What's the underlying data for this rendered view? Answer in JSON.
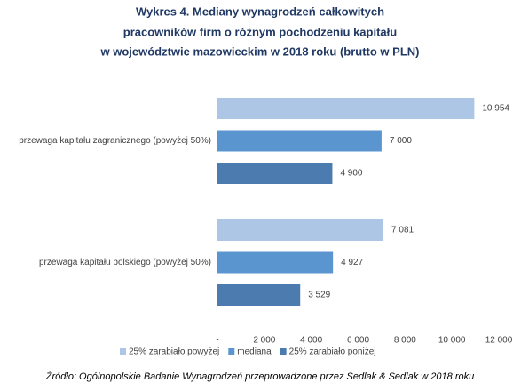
{
  "chart_data": {
    "type": "barh",
    "title_lines": [
      "Wykres 4. Mediany wynagrodzeń całkowitych",
      "pracowników firm o różnym pochodzeniu kapitału",
      "w województwie mazowieckim w 2018 roku (brutto w PLN)"
    ],
    "categories": [
      "przewaga kapitału zagranicznego (powyżej 50%)",
      "przewaga kapitału polskiego (powyżej 50%)"
    ],
    "series": [
      {
        "name": "25% zarabiało powyżej",
        "color": "#adc6e5",
        "values": [
          10954,
          7081
        ],
        "value_labels": [
          "10 954",
          "7 081"
        ]
      },
      {
        "name": "mediana",
        "color": "#5b95d0",
        "values": [
          7000,
          4927
        ],
        "value_labels": [
          "7 000",
          "4 927"
        ]
      },
      {
        "name": "25% zarabiało poniżej",
        "color": "#4c7bb0",
        "values": [
          4900,
          3529
        ],
        "value_labels": [
          "4 900",
          "3 529"
        ]
      }
    ],
    "xlim": [
      0,
      12000
    ],
    "xticks": [
      {
        "value": 0,
        "label": "-"
      },
      {
        "value": 2000,
        "label": "2 000"
      },
      {
        "value": 4000,
        "label": "4 000"
      },
      {
        "value": 6000,
        "label": "6 000"
      },
      {
        "value": 8000,
        "label": "8 000"
      },
      {
        "value": 10000,
        "label": "10 000"
      },
      {
        "value": 12000,
        "label": "12 000"
      }
    ],
    "grid": false,
    "legend": "bottom",
    "source": "Źródło: Ogólnopolskie Badanie Wynagrodzeń przeprowadzone przez Sedlak & Sedlak w 2018 roku"
  }
}
